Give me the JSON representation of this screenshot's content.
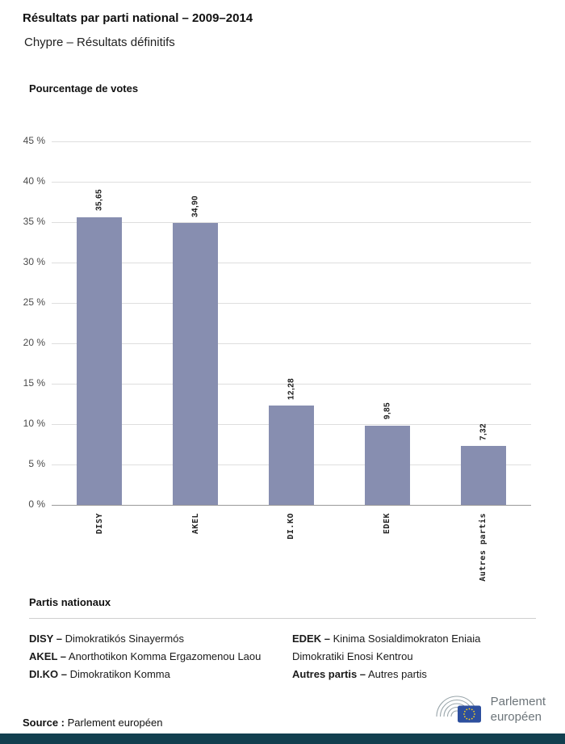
{
  "page": {
    "title": "Résultats par parti national – 2009–2014",
    "subtitle": "Chypre – Résultats définitifs"
  },
  "chart_data": {
    "type": "bar",
    "title": "Pourcentage de votes",
    "categories": [
      "DISY",
      "AKEL",
      "DI.KO",
      "EDEK",
      "Autres partis"
    ],
    "values": [
      35.65,
      34.9,
      12.28,
      9.85,
      7.32
    ],
    "bar_labels": [
      "35,65",
      "34,90",
      "12,28",
      "9,85",
      "7,32"
    ],
    "ytick_values": [
      45,
      40,
      35,
      30,
      25,
      20,
      15,
      10,
      5,
      0
    ],
    "ytick_labels": [
      "45 %",
      "40 %",
      "35 %",
      "30 %",
      "25 %",
      "20 %",
      "15 %",
      "10 %",
      "5 %",
      "0 %"
    ],
    "ylim": [
      0,
      45
    ],
    "grid": true,
    "legend_position": "none",
    "bar_color": "#878eb0"
  },
  "legend": {
    "heading": "Partis nationaux",
    "columns": [
      [
        {
          "abbr": "DISY –",
          "name": " Dimokratikós Sinayermós"
        },
        {
          "abbr": "AKEL –",
          "name": " Anorthotikon Komma Ergazomenou Laou"
        },
        {
          "abbr": "DI.KO –",
          "name": " Dimokratikon Komma"
        }
      ],
      [
        {
          "abbr": "EDEK –",
          "name": " Kinima Sosialdimokraton Eniaia Dimokratiki Enosi Kentrou"
        },
        {
          "abbr": "Autres partis –",
          "name": " Autres partis"
        }
      ]
    ]
  },
  "source": {
    "label": "Source :",
    "text": " Parlement européen"
  },
  "logo": {
    "line1": "Parlement",
    "line2": "européen"
  },
  "colors": {
    "footer_bar": "#123f4f",
    "bar": "#878eb0",
    "eu_blue": "#2d4f9e",
    "eu_star_yellow": "#ffd617"
  }
}
